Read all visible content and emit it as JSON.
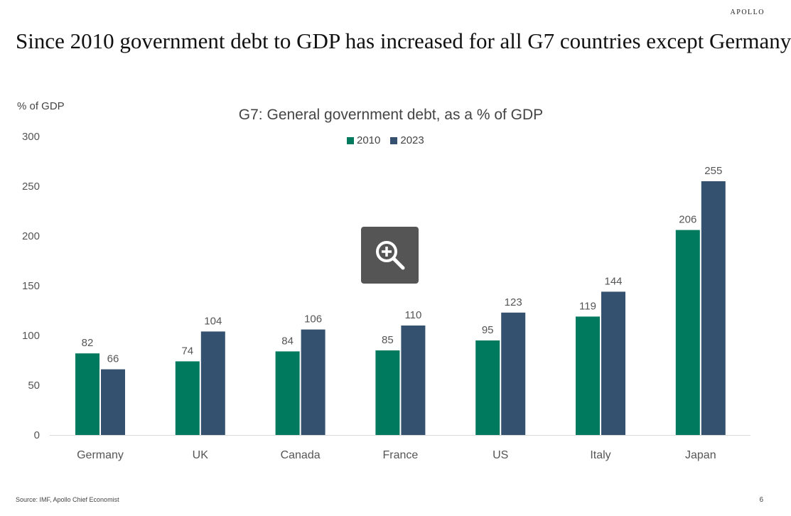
{
  "brand": "APOLLO",
  "headline": "Since 2010 government debt to GDP has increased for all G7 countries except Germany",
  "footnote": "Source: IMF, Apollo Chief Economist",
  "page_number": "6",
  "zoom_icon": "zoom-in-icon",
  "chart_data": {
    "type": "bar",
    "title": "G7: General government debt, as a % of GDP",
    "ylabel": "% of GDP",
    "xlabel": "",
    "categories": [
      "Germany",
      "UK",
      "Canada",
      "France",
      "US",
      "Italy",
      "Japan"
    ],
    "series": [
      {
        "name": "2010",
        "color": "#007a5e",
        "values": [
          82,
          74,
          84,
          85,
          95,
          119,
          206
        ]
      },
      {
        "name": "2023",
        "color": "#34526f",
        "values": [
          66,
          104,
          106,
          110,
          123,
          144,
          255
        ]
      }
    ],
    "ylim": [
      0,
      300
    ],
    "yticks": [
      0,
      50,
      100,
      150,
      200,
      250,
      300
    ],
    "legend_position": "top-center",
    "grid": false,
    "data_labels": true
  }
}
